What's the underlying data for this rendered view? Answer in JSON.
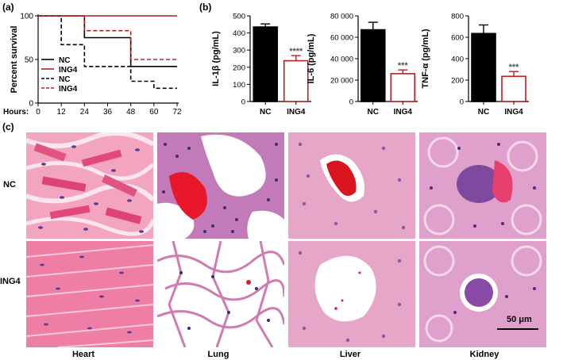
{
  "panels": {
    "a": "(a)",
    "b": "(b)",
    "c": "(c)"
  },
  "colors": {
    "nc": "#000000",
    "ing4": "#b22222",
    "tissue_pink": "#f3b0c6",
    "nucleus": "#5a3d8f",
    "blood": "#e8182a"
  },
  "chart_data": [
    {
      "type": "line",
      "panel": "(a)",
      "xlabel": "Hours:",
      "ylabel": "Percent survival",
      "xticks": [
        0,
        12,
        24,
        36,
        48,
        60,
        72
      ],
      "yticks": [
        0,
        50,
        100
      ],
      "xlim": [
        0,
        72
      ],
      "ylim": [
        0,
        100
      ],
      "legend_position": "lower-left",
      "series": [
        {
          "name": "NC",
          "style": "solid",
          "color": "#000000",
          "x": [
            0,
            24,
            24,
            48,
            48,
            72
          ],
          "y": [
            100,
            100,
            75,
            75,
            42,
            42
          ]
        },
        {
          "name": "ING4",
          "style": "solid",
          "color": "#b22222",
          "x": [
            0,
            72
          ],
          "y": [
            100,
            100
          ]
        },
        {
          "name": "NC",
          "style": "dashed",
          "color": "#000000",
          "x": [
            0,
            12,
            12,
            24,
            24,
            48,
            48,
            60,
            60,
            72
          ],
          "y": [
            100,
            100,
            67,
            67,
            42,
            42,
            25,
            25,
            17,
            17
          ]
        },
        {
          "name": "ING4",
          "style": "dashed",
          "color": "#b22222",
          "x": [
            0,
            24,
            24,
            48,
            48,
            72
          ],
          "y": [
            100,
            100,
            83,
            83,
            50,
            50
          ]
        }
      ]
    },
    {
      "type": "bar",
      "panel": "(b)",
      "ylabel": "IL-1β (pg/mL)",
      "categories": [
        "NC",
        "ING4"
      ],
      "values": [
        435,
        238
      ],
      "errors": [
        18,
        30
      ],
      "significance": [
        "",
        "****"
      ],
      "yticks": [
        "0",
        "100",
        "200",
        "300",
        "400",
        "500"
      ],
      "ylim": [
        0,
        500
      ]
    },
    {
      "type": "bar",
      "panel": "(b)",
      "ylabel": "IL-6 (pg/mL)",
      "categories": [
        "NC",
        "ING4"
      ],
      "values": [
        67000,
        26000
      ],
      "errors": [
        7000,
        3500
      ],
      "significance": [
        "",
        "***"
      ],
      "yticks": [
        "0",
        "20 000",
        "40 000",
        "60 000",
        "80 000"
      ],
      "ylim": [
        0,
        80000
      ]
    },
    {
      "type": "bar",
      "panel": "(b)",
      "ylabel": "TNF-α (pg/mL)",
      "categories": [
        "NC",
        "ING4"
      ],
      "values": [
        635,
        235
      ],
      "errors": [
        80,
        45
      ],
      "significance": [
        "",
        "***"
      ],
      "yticks": [
        "0",
        "200",
        "400",
        "600",
        "800"
      ],
      "ylim": [
        0,
        800
      ]
    }
  ],
  "histology": {
    "rows": [
      "NC",
      "ING4"
    ],
    "columns": [
      "Heart",
      "Lung",
      "Liver",
      "Kidney"
    ],
    "scale_bar": "50 μm"
  }
}
